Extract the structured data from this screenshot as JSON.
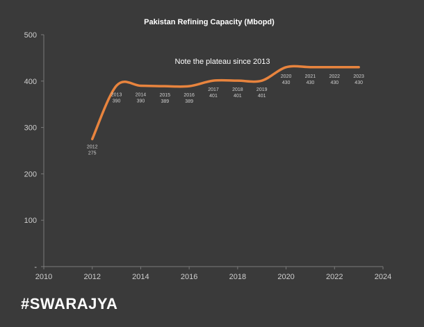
{
  "brand": "#SWARAJYA",
  "colors": {
    "background": "#3a3a3a",
    "line": "#e8843e",
    "axis": "#7a7a7a",
    "grid": "#555555",
    "text": "#cfcfcf"
  },
  "chart_data": {
    "type": "line",
    "title": "Pakistan Refining Capacity (Mbopd)",
    "xlabel": "",
    "ylabel": "",
    "xlim": [
      2010,
      2024
    ],
    "ylim": [
      0,
      500
    ],
    "x_ticks": [
      "2010",
      "2012",
      "2014",
      "2016",
      "2018",
      "2020",
      "2022",
      "2024"
    ],
    "y_ticks": [
      "-",
      "100",
      "200",
      "300",
      "400",
      "500"
    ],
    "grid": false,
    "smooth": true,
    "annotation": "Note the plateau since 2013",
    "series": [
      {
        "x": [
          2012,
          2013,
          2014,
          2015,
          2016,
          2017,
          2018,
          2019,
          2020,
          2021,
          2022,
          2023
        ],
        "values": [
          275,
          390,
          390,
          389,
          389,
          401,
          401,
          401,
          430,
          430,
          430,
          430
        ],
        "labels": [
          [
            "2012",
            "275"
          ],
          [
            "2013",
            "390"
          ],
          [
            "2014",
            "390"
          ],
          [
            "2015",
            "389"
          ],
          [
            "2016",
            "389"
          ],
          [
            "2017",
            "401"
          ],
          [
            "2018",
            "401"
          ],
          [
            "2019",
            "401"
          ],
          [
            "2020",
            "430"
          ],
          [
            "2021",
            "430"
          ],
          [
            "2022",
            "430"
          ],
          [
            "2023",
            "430"
          ]
        ]
      }
    ]
  }
}
